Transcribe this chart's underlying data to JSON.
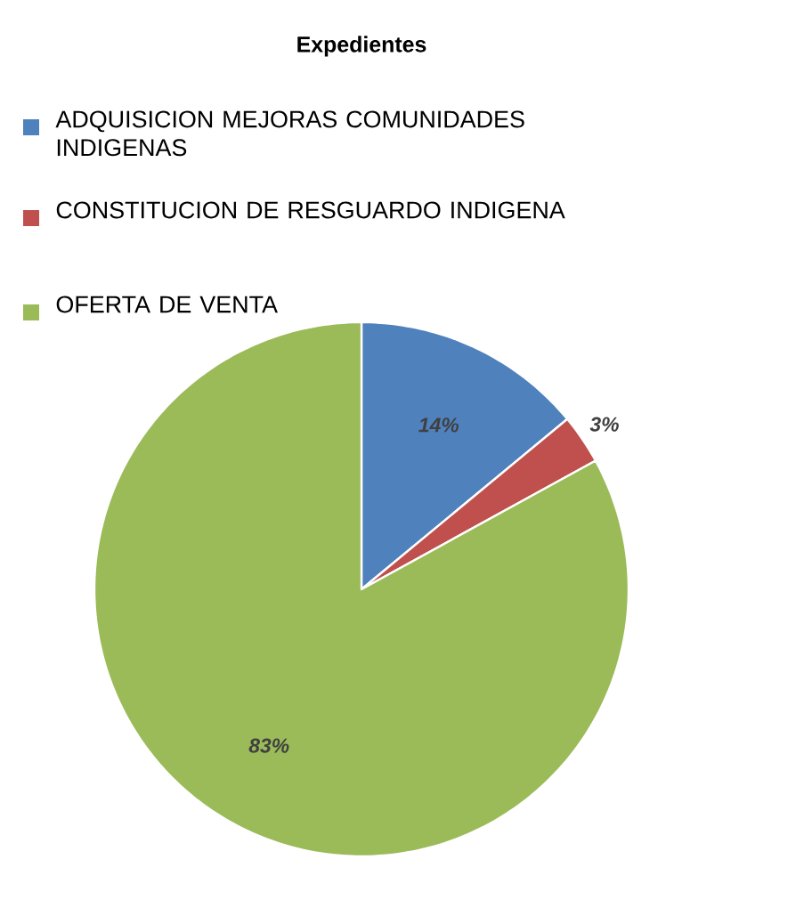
{
  "chart_data": {
    "type": "pie",
    "title": "Expedientes",
    "categories": [
      "ADQUISICION MEJORAS COMUNIDADES INDIGENAS",
      "CONSTITUCION DE RESGUARDO INDIGENA",
      "OFERTA DE VENTA"
    ],
    "values": [
      14,
      3,
      83
    ],
    "value_labels": [
      "14%",
      "3%",
      "83%"
    ],
    "colors": [
      "#4f81bd",
      "#c0504d",
      "#9bbb59"
    ],
    "legend": "top"
  }
}
